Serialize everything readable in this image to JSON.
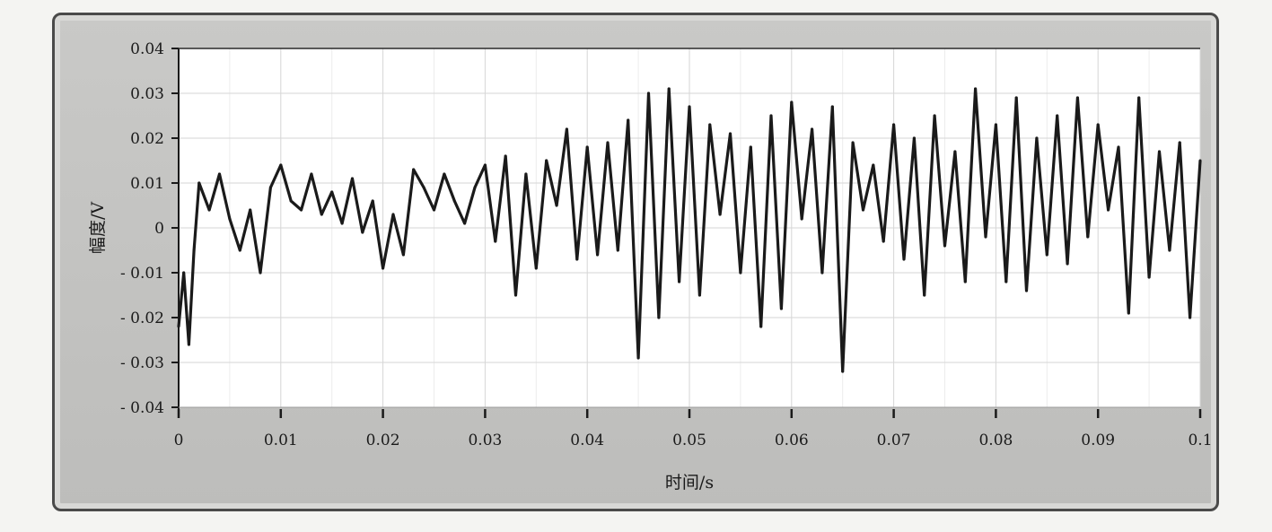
{
  "chart_data": {
    "type": "line",
    "title": "",
    "xlabel": "时间/s",
    "ylabel": "幅度/V",
    "xlim": [
      0,
      0.1
    ],
    "ylim": [
      -0.04,
      0.04
    ],
    "x_ticks": [
      0,
      0.01,
      0.02,
      0.03,
      0.04,
      0.05,
      0.06,
      0.07,
      0.08,
      0.09,
      0.1
    ],
    "x_tick_labels": [
      "0",
      "0.01",
      "0.02",
      "0.03",
      "0.04",
      "0.05",
      "0.06",
      "0.07",
      "0.08",
      "0.09",
      "0.1"
    ],
    "y_ticks": [
      0.04,
      0.03,
      0.02,
      0.01,
      0,
      -0.01,
      -0.02,
      -0.03,
      -0.04
    ],
    "y_tick_labels": [
      "0.04",
      "0.03",
      "0.02",
      "0.01",
      "0",
      "- 0.01",
      "- 0.02",
      "- 0.03",
      "- 0.04"
    ],
    "grid": true,
    "line_color": "#1a1a1a",
    "series": [
      {
        "x": [
          0,
          0.0005,
          0.001,
          0.0015,
          0.002,
          0.003,
          0.004,
          0.005,
          0.006,
          0.007,
          0.008,
          0.009,
          0.01,
          0.011,
          0.012,
          0.013,
          0.014,
          0.015,
          0.016,
          0.017,
          0.018,
          0.019,
          0.02,
          0.021,
          0.022,
          0.023,
          0.024,
          0.025,
          0.026,
          0.027,
          0.028,
          0.029,
          0.03,
          0.031,
          0.032,
          0.033,
          0.034,
          0.035,
          0.036,
          0.037,
          0.038,
          0.039,
          0.04,
          0.041,
          0.042,
          0.043,
          0.044,
          0.045,
          0.046,
          0.047,
          0.048,
          0.049,
          0.05,
          0.051,
          0.052,
          0.053,
          0.054,
          0.055,
          0.056,
          0.057,
          0.058,
          0.059,
          0.06,
          0.061,
          0.062,
          0.063,
          0.064,
          0.065,
          0.066,
          0.067,
          0.068,
          0.069,
          0.07,
          0.071,
          0.072,
          0.073,
          0.074,
          0.075,
          0.076,
          0.077,
          0.078,
          0.079,
          0.08,
          0.081,
          0.082,
          0.083,
          0.084,
          0.085,
          0.086,
          0.087,
          0.088,
          0.089,
          0.09,
          0.091,
          0.092,
          0.093,
          0.094,
          0.095,
          0.096,
          0.097,
          0.098,
          0.099,
          0.1
        ],
        "y": [
          -0.022,
          -0.01,
          -0.026,
          -0.005,
          0.01,
          0.004,
          0.012,
          0.002,
          -0.005,
          0.004,
          -0.01,
          0.009,
          0.014,
          0.006,
          0.004,
          0.012,
          0.003,
          0.008,
          0.001,
          0.011,
          -0.001,
          0.006,
          -0.009,
          0.003,
          -0.006,
          0.013,
          0.009,
          0.004,
          0.012,
          0.006,
          0.001,
          0.009,
          0.014,
          -0.003,
          0.016,
          -0.015,
          0.012,
          -0.009,
          0.015,
          0.005,
          0.022,
          -0.007,
          0.018,
          -0.006,
          0.019,
          -0.005,
          0.024,
          -0.029,
          0.03,
          -0.02,
          0.031,
          -0.012,
          0.027,
          -0.015,
          0.023,
          0.003,
          0.021,
          -0.01,
          0.018,
          -0.022,
          0.025,
          -0.018,
          0.028,
          0.002,
          0.022,
          -0.01,
          0.027,
          -0.032,
          0.019,
          0.004,
          0.014,
          -0.003,
          0.023,
          -0.007,
          0.02,
          -0.015,
          0.025,
          -0.004,
          0.017,
          -0.012,
          0.031,
          -0.002,
          0.023,
          -0.012,
          0.029,
          -0.014,
          0.02,
          -0.006,
          0.025,
          -0.008,
          0.029,
          -0.002,
          0.023,
          0.004,
          0.018,
          -0.019,
          0.029,
          -0.011,
          0.017,
          -0.005,
          0.019,
          -0.02,
          0.015
        ]
      }
    ]
  }
}
